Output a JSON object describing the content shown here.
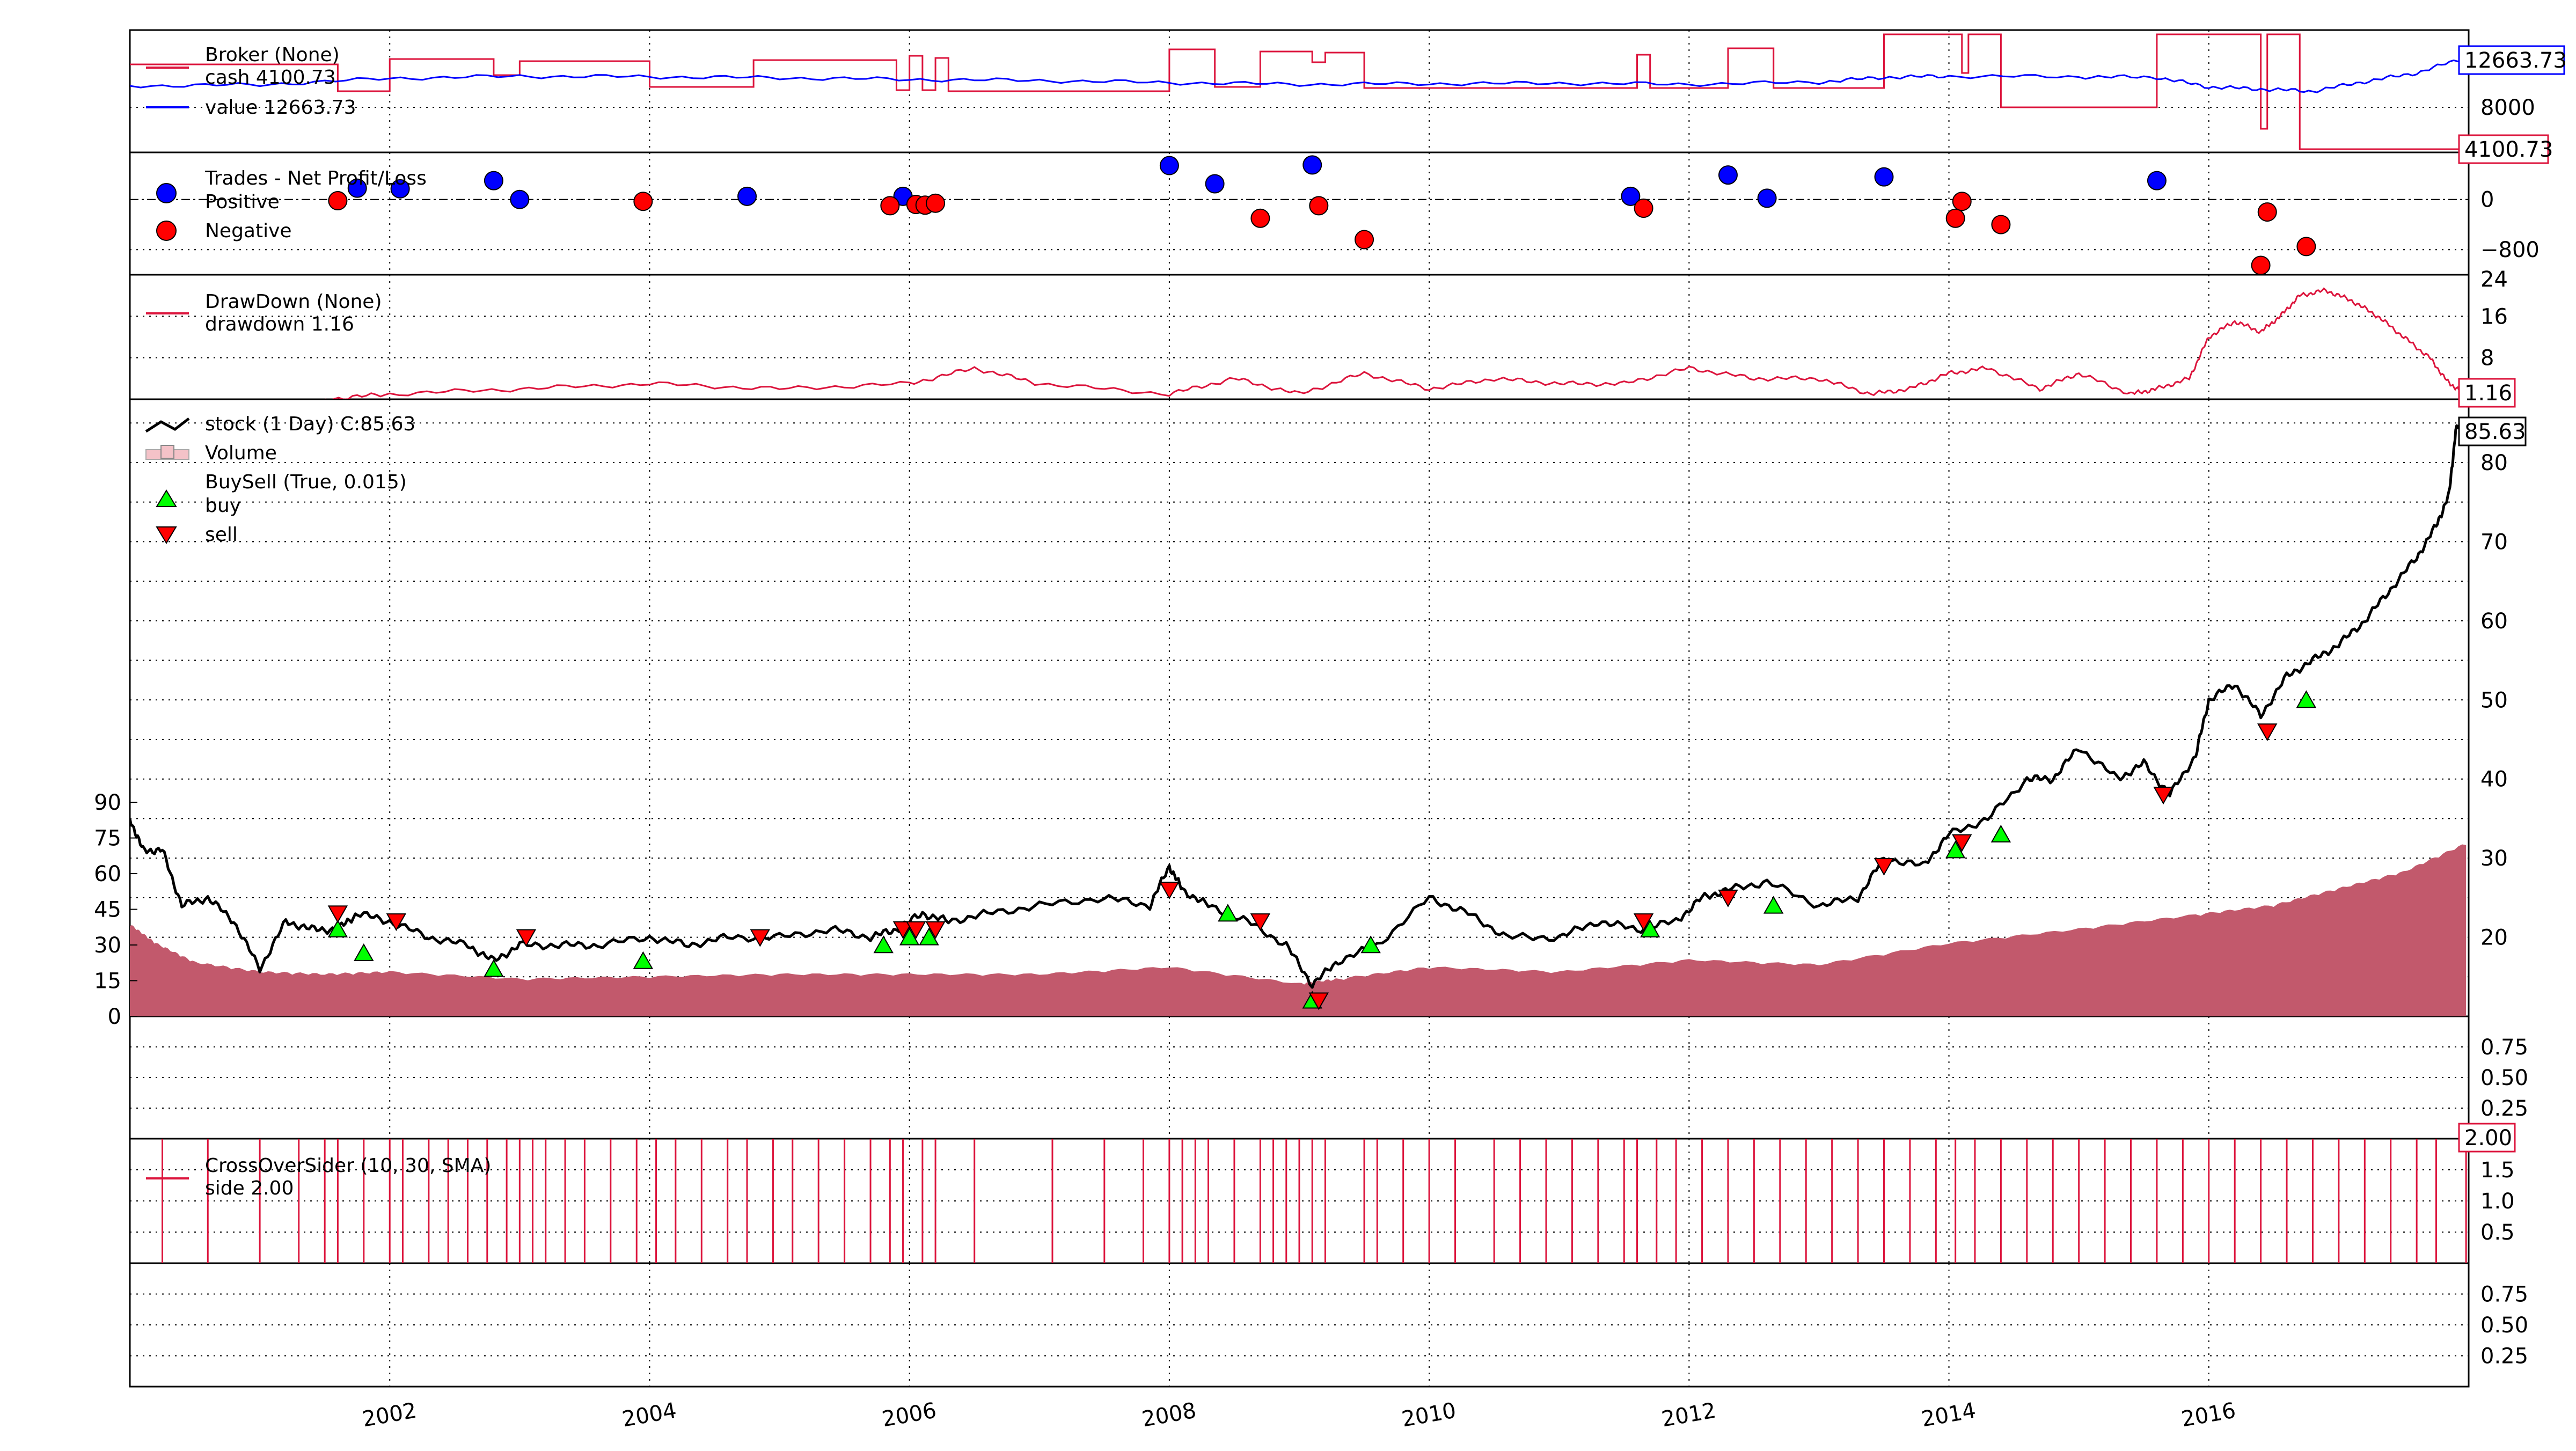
{
  "chart_data": [
    {
      "type": "line",
      "name": "broker-panel",
      "legend": [
        "Broker (None)",
        "cash 4100.73",
        "value 12663.73"
      ],
      "yticks": [
        "8000"
      ],
      "last_labels": {
        "value": "12663.73",
        "cash": "4100.73"
      },
      "colors": {
        "value": "#0000ff",
        "cash": "#dc143c"
      },
      "value_series": {
        "x": [
          2000.0,
          2001.0,
          2002.0,
          2003.0,
          2004.0,
          2005.0,
          2006.0,
          2007.0,
          2008.0,
          2009.0,
          2010.0,
          2011.0,
          2012.0,
          2013.0,
          2013.5,
          2014.0,
          2015.0,
          2015.6,
          2016.0,
          2016.4,
          2016.8,
          2017.2,
          2017.6,
          2017.98
        ],
        "y": [
          10000,
          10100,
          10700,
          10900,
          10850,
          10750,
          10600,
          10500,
          10300,
          10150,
          10200,
          10250,
          10150,
          10350,
          10800,
          10900,
          10850,
          10800,
          9900,
          9700,
          9500,
          10400,
          11200,
          12663.73
        ]
      },
      "cash_steps": {
        "x": [
          2000.0,
          2001.5,
          2001.6,
          2002.0,
          2002.8,
          2003.0,
          2004.0,
          2004.8,
          2005.9,
          2006.0,
          2006.1,
          2006.2,
          2006.3,
          2008.0,
          2008.35,
          2008.7,
          2009.1,
          2009.2,
          2009.5,
          2011.6,
          2011.7,
          2012.3,
          2012.65,
          2013.5,
          2014.1,
          2014.15,
          2014.4,
          2015.6,
          2016.4,
          2016.45,
          2016.7,
          2018.0
        ],
        "y": [
          12000,
          12000,
          9500,
          12500,
          11000,
          12300,
          9900,
          12400,
          9600,
          12800,
          9600,
          12600,
          9500,
          13400,
          9900,
          13200,
          12200,
          13100,
          9800,
          12900,
          9800,
          13500,
          9800,
          14800,
          11200,
          14800,
          8000,
          14800,
          6000,
          14800,
          4100.73,
          4100.73
        ]
      },
      "y_range": [
        3800,
        15200
      ]
    },
    {
      "type": "scatter",
      "name": "trades-panel",
      "legend": [
        "Trades - Net Profit/Loss",
        "Positive",
        "Negative"
      ],
      "yticks": [
        "0",
        "−800"
      ],
      "colors": {
        "positive": "#0000ff",
        "negative": "#ff0000"
      },
      "positive": {
        "x": [
          2001.75,
          2002.08,
          2002.8,
          2003.0,
          2004.75,
          2005.95,
          2008.0,
          2008.35,
          2009.1,
          2011.55,
          2012.3,
          2012.6,
          2013.5,
          2015.6
        ],
        "y": [
          180,
          170,
          300,
          0,
          50,
          50,
          540,
          250,
          550,
          50,
          390,
          20,
          360,
          300
        ]
      },
      "negative": {
        "x": [
          2001.6,
          2003.95,
          2005.85,
          2006.05,
          2006.12,
          2006.2,
          2008.7,
          2009.15,
          2009.5,
          2011.65,
          2014.05,
          2014.1,
          2014.4,
          2016.4,
          2016.45,
          2016.75
        ],
        "y": [
          -20,
          -30,
          -100,
          -80,
          -90,
          -60,
          -300,
          -100,
          -640,
          -140,
          -300,
          -30,
          -400,
          -1050,
          -200,
          -750
        ]
      },
      "y_range": [
        -1200,
        750
      ]
    },
    {
      "type": "line",
      "name": "drawdown-panel",
      "legend": [
        "DrawDown (None)",
        "drawdown 1.16"
      ],
      "yticks": [
        "24",
        "16",
        "8"
      ],
      "last_label": "1.16",
      "color": "#dc143c",
      "x": [
        2001.5,
        2002.0,
        2003.0,
        2004.0,
        2005.0,
        2006.0,
        2006.5,
        2007.0,
        2008.0,
        2008.5,
        2009.0,
        2009.5,
        2010.0,
        2010.5,
        2011.0,
        2011.5,
        2012.0,
        2012.5,
        2013.0,
        2013.4,
        2013.7,
        2014.0,
        2014.3,
        2014.7,
        2015.0,
        2015.4,
        2015.6,
        2015.85,
        2016.0,
        2016.2,
        2016.4,
        2016.55,
        2016.7,
        2016.9,
        2017.1,
        2017.3,
        2017.5,
        2017.7,
        2017.85,
        2017.98
      ],
      "y": [
        0,
        1,
        2,
        3,
        2,
        3,
        6,
        3,
        1,
        4,
        1,
        5,
        2,
        4,
        3,
        3,
        6,
        4,
        4,
        1,
        2,
        5,
        6,
        2,
        5,
        1,
        2,
        4,
        12,
        15,
        13,
        16,
        20,
        21,
        19,
        16,
        12,
        8,
        3,
        1.16
      ],
      "y_range": [
        0,
        24
      ]
    },
    {
      "type": "line",
      "name": "price-panel",
      "legend": [
        "stock (1 Day) C:85.63",
        "Volume",
        "BuySell (True, 0.015)",
        "buy",
        "sell"
      ],
      "last_label": "85.63",
      "yticks_right": [
        "80",
        "70",
        "60",
        "50",
        "40",
        "30",
        "20"
      ],
      "yticks_volume": [
        "90",
        "75",
        "60",
        "45",
        "30",
        "15",
        "0"
      ],
      "colors": {
        "price": "#000000",
        "volume": "#c2596c",
        "buy": "#00ff00",
        "sell": "#ff0000"
      },
      "price": {
        "x": [
          2000.0,
          2000.1,
          2000.25,
          2000.4,
          2000.6,
          2000.8,
          2001.0,
          2001.2,
          2001.4,
          2001.6,
          2001.75,
          2002.0,
          2002.3,
          2002.6,
          2002.8,
          2003.0,
          2003.3,
          2003.6,
          2004.0,
          2004.3,
          2004.6,
          2005.0,
          2005.4,
          2005.7,
          2005.9,
          2006.1,
          2006.3,
          2006.6,
          2007.0,
          2007.5,
          2007.85,
          2008.0,
          2008.1,
          2008.3,
          2008.6,
          2008.9,
          2009.1,
          2009.3,
          2009.6,
          2010.0,
          2010.3,
          2010.6,
          2011.0,
          2011.3,
          2011.6,
          2011.9,
          2012.1,
          2012.3,
          2012.6,
          2013.0,
          2013.3,
          2013.5,
          2013.8,
          2014.0,
          2014.3,
          2014.6,
          2014.8,
          2015.0,
          2015.3,
          2015.5,
          2015.7,
          2015.9,
          2016.0,
          2016.2,
          2016.4,
          2016.6,
          2016.8,
          2017.0,
          2017.2,
          2017.4,
          2017.6,
          2017.75,
          2017.85,
          2017.9,
          2017.98
        ],
        "y": [
          35,
          31,
          31,
          24,
          25,
          22,
          16,
          22,
          21,
          21,
          23,
          22,
          20,
          19,
          17,
          19,
          19,
          19,
          20,
          19,
          20,
          20,
          21,
          20,
          21,
          23,
          22,
          23,
          24,
          25,
          24,
          29,
          26,
          24,
          22,
          19,
          14,
          17,
          19,
          25,
          23,
          20,
          20,
          22,
          21,
          22,
          25,
          26,
          27,
          24,
          25,
          30,
          29,
          33,
          35,
          40,
          40,
          44,
          40,
          42,
          38,
          43,
          50,
          52,
          48,
          53,
          55,
          57,
          60,
          64,
          68,
          72,
          76,
          84,
          85.63
        ]
      },
      "volume": {
        "x": [
          2000.0,
          2000.2,
          2000.5,
          2001.0,
          2001.5,
          2002.0,
          2003.0,
          2004.0,
          2005.0,
          2006.0,
          2007.0,
          2008.0,
          2009.0,
          2009.3,
          2010.0,
          2011.0,
          2012.0,
          2013.0,
          2014.0,
          2015.0,
          2015.9,
          2016.5,
          2017.0,
          2017.5,
          2017.98
        ],
        "y": [
          38,
          30,
          22,
          18,
          17,
          18,
          15,
          16,
          17,
          17,
          17,
          20,
          13,
          15,
          20,
          18,
          23,
          21,
          30,
          36,
          42,
          46,
          53,
          60,
          72
        ]
      },
      "buy": {
        "x": [
          2001.6,
          2001.8,
          2002.8,
          2003.95,
          2005.8,
          2006.0,
          2006.15,
          2008.45,
          2009.1,
          2009.55,
          2011.7,
          2012.65,
          2014.05,
          2014.4,
          2016.75
        ],
        "y": [
          21,
          18,
          16,
          17,
          19,
          20,
          20,
          23,
          12,
          19,
          21,
          24,
          31,
          33,
          50
        ]
      },
      "sell": {
        "x": [
          2001.6,
          2002.05,
          2003.05,
          2004.85,
          2005.95,
          2006.05,
          2006.2,
          2008.0,
          2008.7,
          2009.15,
          2011.65,
          2012.3,
          2013.5,
          2014.1,
          2015.65,
          2016.45
        ],
        "y": [
          23,
          22,
          20,
          20,
          21,
          21,
          21,
          26,
          22,
          12,
          22,
          25,
          29,
          32,
          38,
          46
        ]
      },
      "y_range": [
        10,
        88
      ],
      "volume_range": [
        0,
        95
      ]
    },
    {
      "type": "line",
      "name": "empty-panel-1",
      "yticks": [
        "0.75",
        "0.50",
        "0.25"
      ]
    },
    {
      "type": "bar",
      "name": "crossover-panel",
      "legend": [
        "CrossOverSider (10, 30, SMA)",
        "side 2.00"
      ],
      "yticks": [
        "1.5",
        "1.0",
        "0.5"
      ],
      "last_label": "2.00",
      "color": "#dc143c",
      "spikes_x": [
        2000.25,
        2000.6,
        2001.0,
        2001.3,
        2001.5,
        2001.6,
        2001.8,
        2002.0,
        2002.1,
        2002.3,
        2002.45,
        2002.6,
        2002.75,
        2002.9,
        2003.0,
        2003.1,
        2003.2,
        2003.35,
        2003.5,
        2003.7,
        2003.9,
        2004.05,
        2004.2,
        2004.4,
        2004.6,
        2004.75,
        2004.95,
        2005.1,
        2005.3,
        2005.5,
        2005.7,
        2005.85,
        2005.95,
        2006.1,
        2006.2,
        2006.5,
        2007.1,
        2007.5,
        2007.8,
        2008.0,
        2008.1,
        2008.2,
        2008.3,
        2008.5,
        2008.7,
        2008.8,
        2008.9,
        2009.0,
        2009.1,
        2009.2,
        2009.5,
        2009.6,
        2009.8,
        2010.0,
        2010.2,
        2010.5,
        2010.7,
        2010.9,
        2011.1,
        2011.3,
        2011.5,
        2011.6,
        2011.75,
        2011.9,
        2012.1,
        2012.3,
        2012.5,
        2012.7,
        2012.9,
        2013.1,
        2013.3,
        2013.5,
        2013.7,
        2013.9,
        2014.05,
        2014.2,
        2014.4,
        2014.6,
        2014.8,
        2015.0,
        2015.2,
        2015.4,
        2015.6,
        2015.8,
        2016.0,
        2016.2,
        2016.4,
        2016.6,
        2016.8,
        2017.0,
        2017.2,
        2017.4,
        2017.6,
        2017.75,
        2017.98
      ],
      "y_range": [
        0,
        2
      ]
    },
    {
      "type": "line",
      "name": "empty-panel-2",
      "yticks": [
        "0.75",
        "0.50",
        "0.25"
      ]
    }
  ],
  "x_axis": {
    "range": [
      2000.0,
      2018.0
    ],
    "ticks": [
      "2002",
      "2004",
      "2006",
      "2008",
      "2010",
      "2012",
      "2014",
      "2016"
    ],
    "tick_values": [
      2002,
      2004,
      2006,
      2008,
      2010,
      2012,
      2014,
      2016
    ]
  }
}
